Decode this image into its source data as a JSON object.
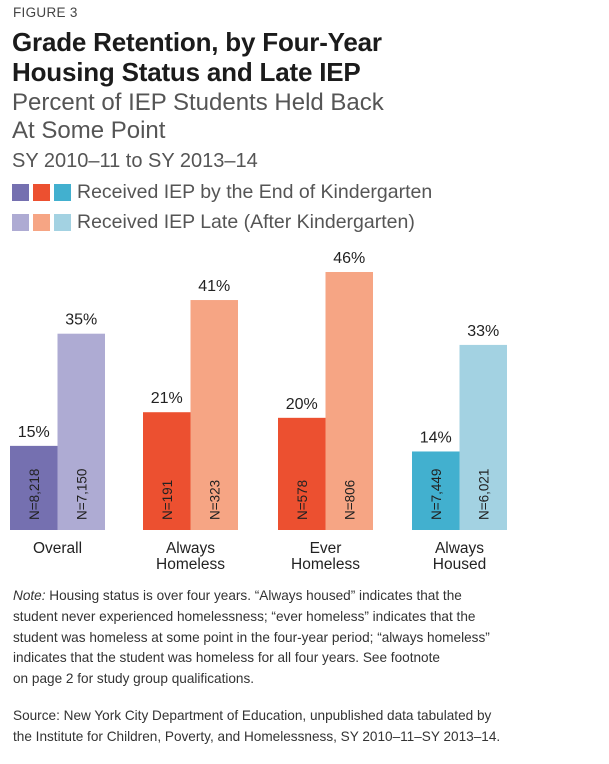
{
  "figure_label": "FIGURE 3",
  "title_lines": [
    "Grade Retention, by Four-Year",
    "Housing Status and Late IEP"
  ],
  "subtitle_lines": [
    "Percent of IEP Students Held Back",
    "At Some Point"
  ],
  "period": "SY 2010–11 to SY 2013–14",
  "colors": {
    "overall_early": "#7570b0",
    "overall_late": "#aeabd3",
    "ah_early": "#ec5030",
    "ah_late": "#f6a584",
    "eh_early": "#ec5030",
    "eh_late": "#f6a584",
    "housed_early": "#42b0cf",
    "housed_late": "#a3d2e2"
  },
  "chart_data": {
    "type": "bar",
    "title": "Grade Retention, by Four-Year Housing Status and Late IEP",
    "ylabel": "Percent of IEP Students Held Back At Some Point",
    "ylim": [
      0,
      46
    ],
    "grid": false,
    "legend": {
      "placement": "top-left",
      "entries": [
        "Received IEP by the End of Kindergarten",
        "Received IEP Late (After Kindergarten)"
      ]
    },
    "categories": [
      [
        "Overall"
      ],
      [
        "Always",
        "Homeless"
      ],
      [
        "Ever",
        "Homeless"
      ],
      [
        "Always",
        "Housed"
      ]
    ],
    "series": [
      {
        "name": "Received IEP by the End of Kindergarten",
        "values": [
          15,
          21,
          20,
          14
        ],
        "labels": [
          "15%",
          "21%",
          "20%",
          "14%"
        ],
        "n": [
          "N=8,218",
          "N=191",
          "N=578",
          "N=7,449"
        ],
        "colors": [
          "#7570b0",
          "#ec5030",
          "#ec5030",
          "#42b0cf"
        ]
      },
      {
        "name": "Received IEP Late (After Kindergarten)",
        "values": [
          35,
          41,
          46,
          33
        ],
        "labels": [
          "35%",
          "41%",
          "46%",
          "33%"
        ],
        "n": [
          "N=7,150",
          "N=323",
          "N=806",
          "N=6,021"
        ],
        "colors": [
          "#aeabd3",
          "#f6a584",
          "#f6a584",
          "#a3d2e2"
        ]
      }
    ]
  },
  "note": {
    "label": "Note:",
    "lines": [
      " Housing status is over four years. “Always housed” indicates that the",
      "student never experienced homelessness; “ever homeless” indicates that the",
      "student was homeless at some point in the four-year period; “always homeless”",
      "indicates that the student was homeless for all four years. See footnote",
      "on page 2 for study group qualifications."
    ]
  },
  "source_lines": [
    "Source: New York City Department of Education, unpublished data tabulated by",
    "the Institute for Children, Poverty, and Homelessness, SY 2010–11–SY 2013–14."
  ]
}
